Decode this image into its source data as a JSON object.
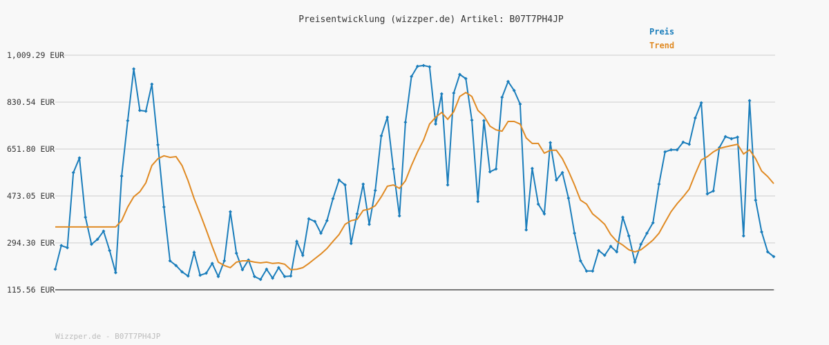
{
  "chart_data": {
    "type": "line",
    "title": "Preisentwicklung (wizzper.de) Artikel: B07T7PH4JP",
    "footer": "Wizzper.de - B07T7PH4JP",
    "legend": "top-right",
    "grid": true,
    "ylim": [
      115.56,
      1009.29
    ],
    "yticks": [
      {
        "value": 115.56,
        "label": "115.56 EUR"
      },
      {
        "value": 294.3,
        "label": "294.30 EUR"
      },
      {
        "value": 473.05,
        "label": "473.05 EUR"
      },
      {
        "value": 651.8,
        "label": "651.80 EUR"
      },
      {
        "value": 830.54,
        "label": "830.54 EUR"
      },
      {
        "value": 1009.29,
        "label": "1,009.29 EUR"
      }
    ],
    "series": [
      {
        "name": "Preis",
        "color": "#1a7dbb",
        "markers": true,
        "values": [
          194,
          284,
          276,
          562,
          618,
          392,
          289,
          308,
          339,
          265,
          181,
          549,
          760,
          957,
          799,
          796,
          899,
          668,
          431,
          226,
          208,
          184,
          168,
          258,
          171,
          179,
          216,
          166,
          226,
          413,
          255,
          192,
          229,
          166,
          155,
          194,
          160,
          200,
          166,
          168,
          300,
          247,
          386,
          376,
          331,
          379,
          463,
          534,
          515,
          292,
          405,
          518,
          365,
          494,
          702,
          773,
          576,
          397,
          754,
          928,
          967,
          970,
          965,
          747,
          862,
          515,
          865,
          936,
          920,
          762,
          452,
          760,
          565,
          576,
          849,
          909,
          875,
          823,
          344,
          578,
          442,
          405,
          676,
          534,
          562,
          465,
          331,
          226,
          187,
          187,
          265,
          247,
          281,
          260,
          392,
          321,
          221,
          289,
          331,
          371,
          518,
          641,
          649,
          649,
          678,
          670,
          770,
          828,
          481,
          492,
          657,
          699,
          691,
          697,
          321,
          836,
          457,
          336,
          260,
          242
        ]
      },
      {
        "name": "Trend",
        "color": "#e08a23",
        "markers": false,
        "values": [
          355,
          355,
          355,
          355,
          355,
          355,
          355,
          355,
          355,
          355,
          355,
          379,
          431,
          470,
          489,
          523,
          589,
          615,
          626,
          620,
          623,
          589,
          531,
          463,
          405,
          344,
          281,
          221,
          208,
          200,
          221,
          226,
          226,
          221,
          218,
          221,
          216,
          218,
          213,
          192,
          194,
          200,
          216,
          234,
          252,
          273,
          300,
          326,
          365,
          379,
          384,
          418,
          423,
          436,
          470,
          510,
          515,
          502,
          531,
          589,
          641,
          686,
          747,
          773,
          791,
          765,
          794,
          852,
          867,
          852,
          799,
          778,
          739,
          725,
          720,
          757,
          757,
          747,
          694,
          673,
          673,
          636,
          647,
          647,
          615,
          568,
          515,
          457,
          442,
          405,
          386,
          365,
          326,
          300,
          286,
          268,
          260,
          268,
          286,
          305,
          331,
          373,
          413,
          444,
          470,
          499,
          557,
          610,
          623,
          641,
          654,
          660,
          665,
          670,
          633,
          649,
          615,
          568,
          547,
          520
        ]
      }
    ]
  }
}
